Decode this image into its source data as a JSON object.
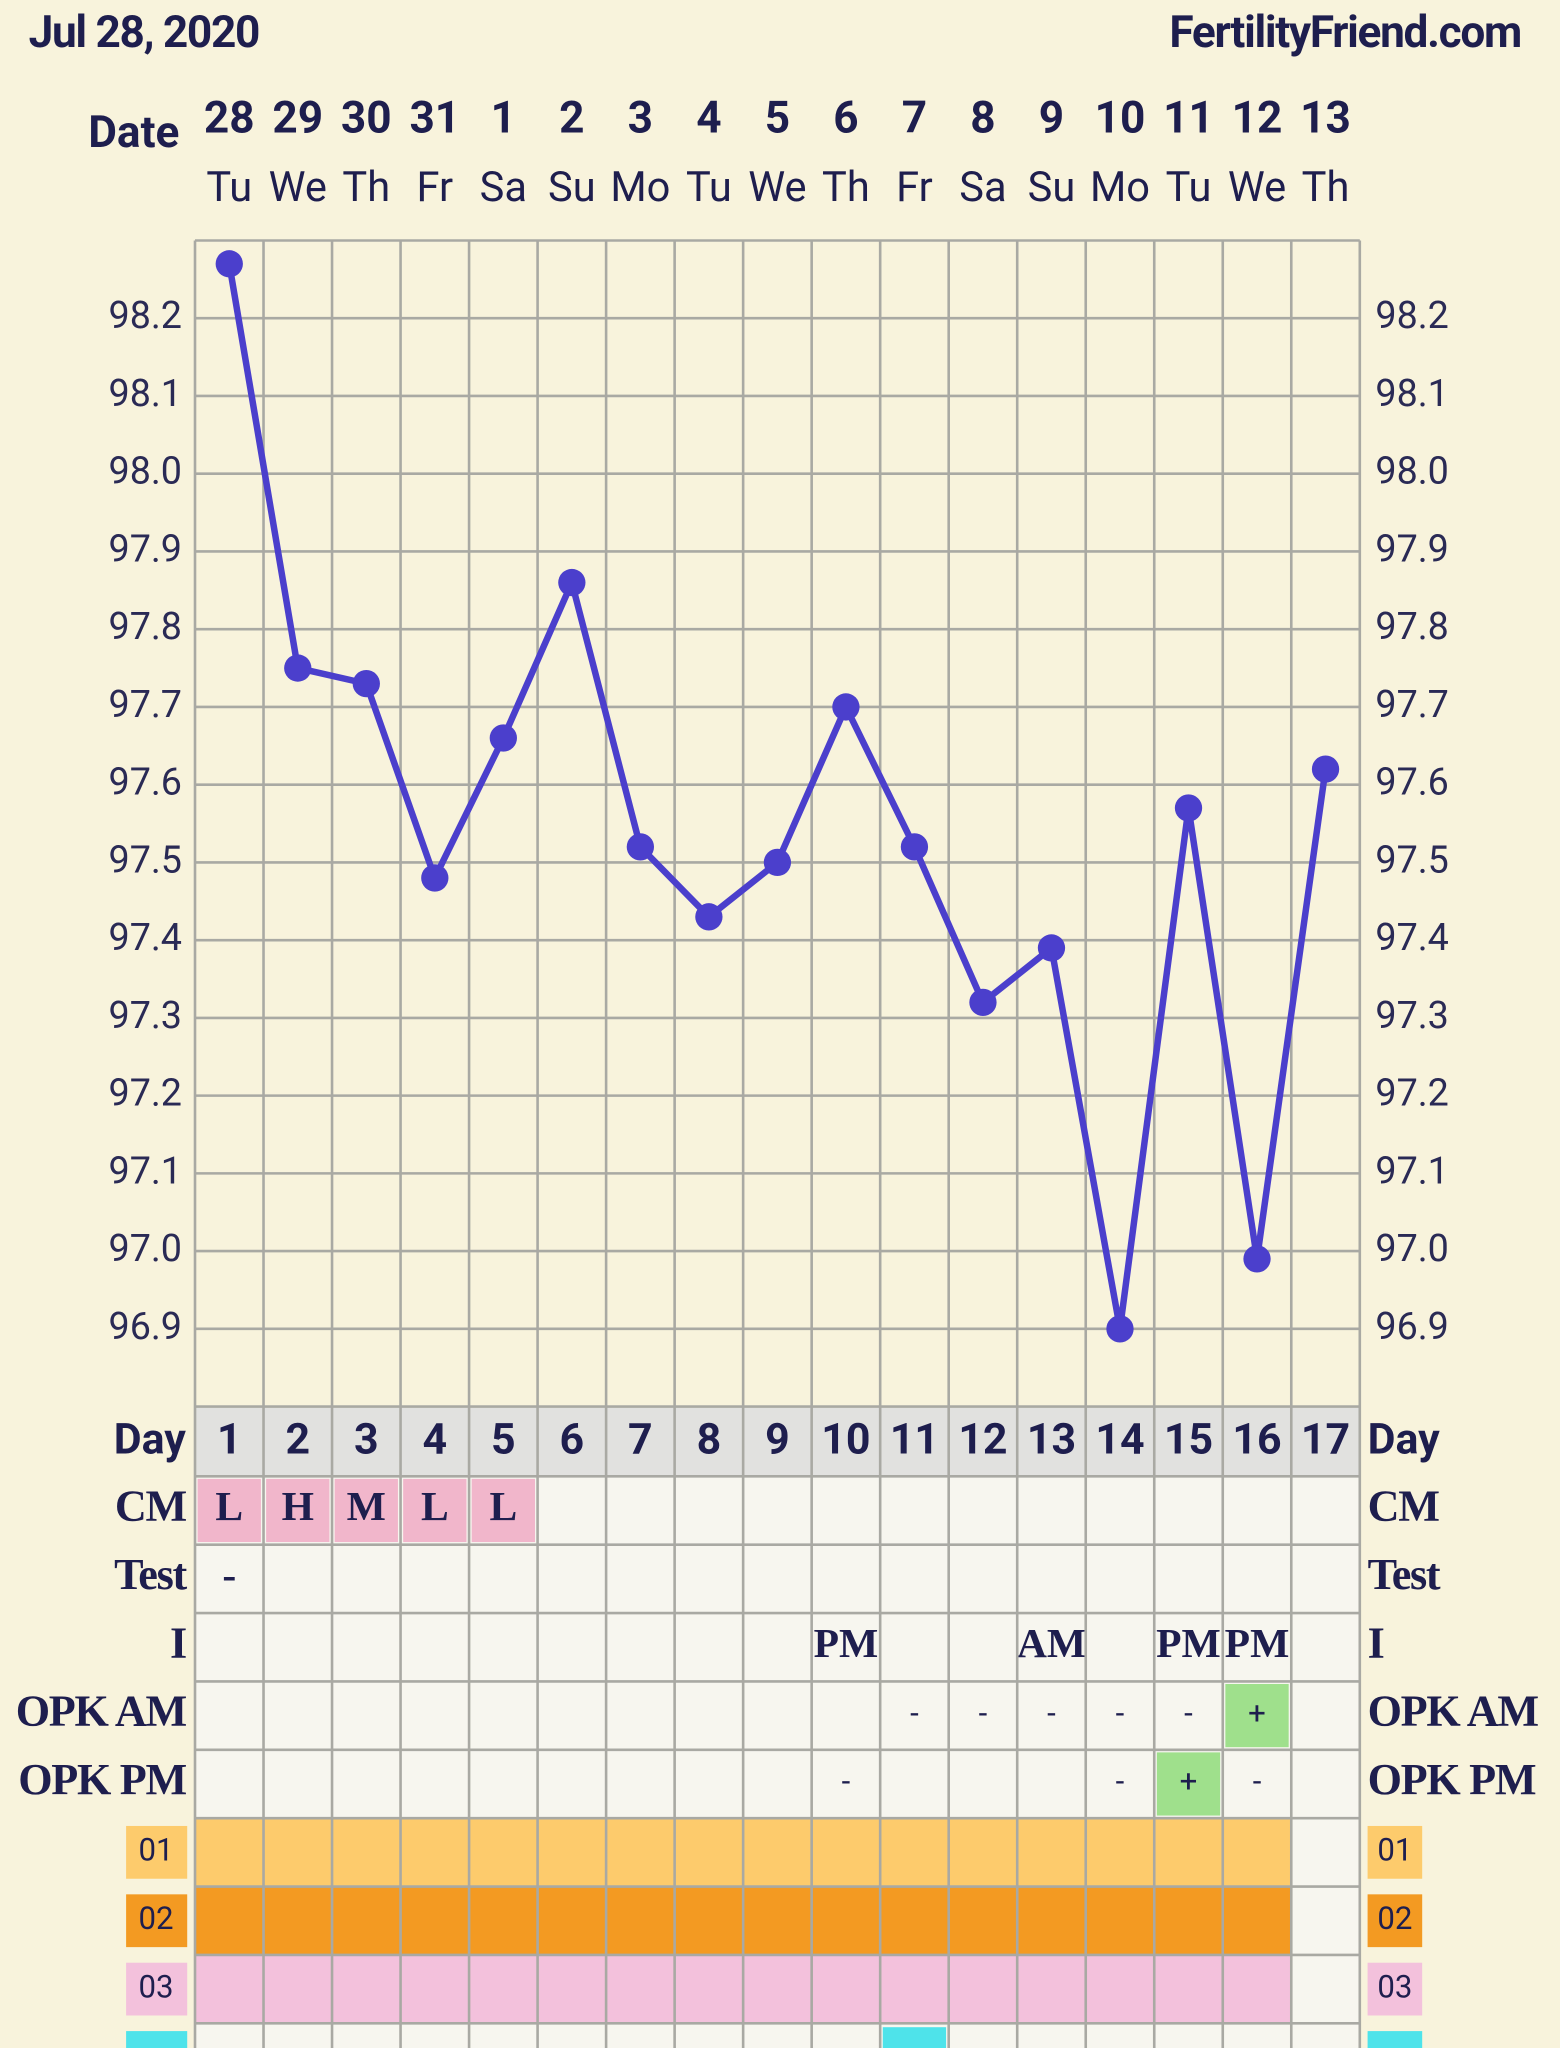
{
  "header": {
    "date": "Jul 28, 2020",
    "site": "FertilityFriend.com"
  },
  "chart_data": {
    "type": "line",
    "x_label": "Date",
    "categories": [
      "28",
      "29",
      "30",
      "31",
      "1",
      "2",
      "3",
      "4",
      "5",
      "6",
      "7",
      "8",
      "9",
      "10",
      "11",
      "12",
      "13"
    ],
    "weekdays": [
      "Tu",
      "We",
      "Th",
      "Fr",
      "Sa",
      "Su",
      "Mo",
      "Tu",
      "We",
      "Th",
      "Fr",
      "Sa",
      "Su",
      "Mo",
      "Tu",
      "We",
      "Th"
    ],
    "values": [
      98.27,
      97.75,
      97.73,
      97.48,
      97.66,
      97.86,
      97.52,
      97.43,
      97.5,
      97.7,
      97.52,
      97.32,
      97.39,
      96.9,
      97.57,
      96.99,
      97.62
    ],
    "color": "#4b3fcc",
    "ylim": [
      96.8,
      98.3
    ],
    "yticks": [
      {
        "value": 96.9,
        "label": "96.9"
      },
      {
        "value": 97.0,
        "label": "97.0"
      },
      {
        "value": 97.1,
        "label": "97.1"
      },
      {
        "value": 97.2,
        "label": "97.2"
      },
      {
        "value": 97.3,
        "label": "97.3"
      },
      {
        "value": 97.4,
        "label": "97.4"
      },
      {
        "value": 97.5,
        "label": "97.5"
      },
      {
        "value": 97.6,
        "label": "97.6"
      },
      {
        "value": 97.7,
        "label": "97.7"
      },
      {
        "value": 97.8,
        "label": "97.8"
      },
      {
        "value": 97.9,
        "label": "97.9"
      },
      {
        "value": 98.0,
        "label": "98.0"
      },
      {
        "value": 98.1,
        "label": "98.1"
      },
      {
        "value": 98.2,
        "label": "98.2"
      }
    ],
    "grid": true
  },
  "table": {
    "rows": [
      {
        "label": "Day",
        "style": "day",
        "cells": [
          1,
          2,
          3,
          4,
          5,
          6,
          7,
          8,
          9,
          10,
          11,
          12,
          13,
          14,
          15,
          16,
          17
        ]
      },
      {
        "label": "CM",
        "style": "code",
        "cells": [
          "L",
          "H",
          "M",
          "L",
          "L",
          null,
          null,
          null,
          null,
          null,
          null,
          null,
          null,
          null,
          null,
          null,
          null
        ],
        "highlight": [
          "#f1b6cb",
          "#f1b6cb",
          "#f1b6cb",
          "#f1b6cb",
          "#f1b6cb",
          null,
          null,
          null,
          null,
          null,
          null,
          null,
          null,
          null,
          null,
          null,
          null
        ]
      },
      {
        "label": "Test",
        "style": "code",
        "cells": [
          "-",
          null,
          null,
          null,
          null,
          null,
          null,
          null,
          null,
          null,
          null,
          null,
          null,
          null,
          null,
          null,
          null
        ]
      },
      {
        "label": "I",
        "style": "code",
        "cells": [
          null,
          null,
          null,
          null,
          null,
          null,
          null,
          null,
          null,
          "PM",
          null,
          null,
          "AM",
          null,
          "PM",
          "PM",
          null
        ]
      },
      {
        "label": "OPK AM",
        "style": "mark",
        "cells": [
          null,
          null,
          null,
          null,
          null,
          null,
          null,
          null,
          null,
          null,
          "-",
          "-",
          "-",
          "-",
          "-",
          "+",
          null
        ],
        "highlight": [
          null,
          null,
          null,
          null,
          null,
          null,
          null,
          null,
          null,
          null,
          null,
          null,
          null,
          null,
          null,
          "#9fe08c",
          null
        ]
      },
      {
        "label": "OPK PM",
        "style": "mark",
        "cells": [
          null,
          null,
          null,
          null,
          null,
          null,
          null,
          null,
          null,
          "-",
          null,
          null,
          null,
          "-",
          "+",
          "-",
          null
        ],
        "highlight": [
          null,
          null,
          null,
          null,
          null,
          null,
          null,
          null,
          null,
          null,
          null,
          null,
          null,
          null,
          "#9fe08c",
          null,
          null
        ]
      },
      {
        "label": "01",
        "style": "band",
        "color": "#fdcb6c",
        "shaded": [
          true,
          true,
          true,
          true,
          true,
          true,
          true,
          true,
          true,
          true,
          true,
          true,
          true,
          true,
          true,
          true,
          false
        ]
      },
      {
        "label": "02",
        "style": "band",
        "color": "#f39a22",
        "shaded": [
          true,
          true,
          true,
          true,
          true,
          true,
          true,
          true,
          true,
          true,
          true,
          true,
          true,
          true,
          true,
          true,
          false
        ]
      },
      {
        "label": "03",
        "style": "band",
        "color": "#f3c1dc",
        "shaded": [
          true,
          true,
          true,
          true,
          true,
          true,
          true,
          true,
          true,
          true,
          true,
          true,
          true,
          true,
          true,
          true,
          false
        ]
      }
    ]
  }
}
